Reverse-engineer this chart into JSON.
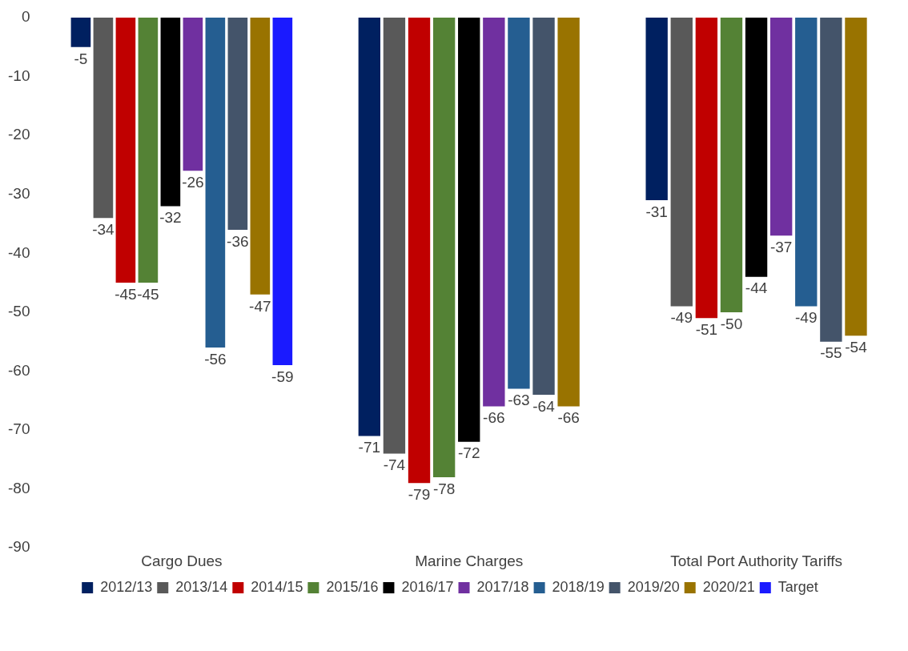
{
  "chart_data": {
    "type": "bar",
    "categories": [
      "Cargo Dues",
      "Marine Charges",
      "Total Port Authority Tariffs"
    ],
    "series": [
      {
        "name": "2012/13",
        "color": "#002060",
        "values": [
          -5,
          -71,
          -31
        ]
      },
      {
        "name": "2013/14",
        "color": "#595959",
        "values": [
          -34,
          -74,
          -49
        ]
      },
      {
        "name": "2014/15",
        "color": "#c00000",
        "values": [
          -45,
          -79,
          -51
        ]
      },
      {
        "name": "2015/16",
        "color": "#548235",
        "values": [
          -45,
          -78,
          -50
        ]
      },
      {
        "name": "2016/17",
        "color": "#000000",
        "values": [
          -32,
          -72,
          -44
        ]
      },
      {
        "name": "2017/18",
        "color": "#7030a0",
        "values": [
          -26,
          -66,
          -37
        ]
      },
      {
        "name": "2018/19",
        "color": "#255e91",
        "values": [
          -56,
          -63,
          -49
        ]
      },
      {
        "name": "2019/20",
        "color": "#44546a",
        "values": [
          -36,
          -64,
          -55
        ]
      },
      {
        "name": "2020/21",
        "color": "#997300",
        "values": [
          -47,
          -66,
          -54
        ]
      },
      {
        "name": "Target",
        "color": "#1a1aff",
        "values": [
          -59,
          null,
          null
        ]
      }
    ],
    "ylim": [
      -90,
      0
    ],
    "yticks": [
      -90,
      -80,
      -70,
      -60,
      -50,
      -40,
      -30,
      -20,
      -10,
      0
    ],
    "grid": false,
    "legend": "bottom",
    "data_labels": true
  }
}
